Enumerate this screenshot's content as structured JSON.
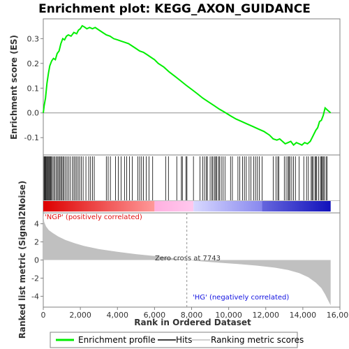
{
  "chart_data": {
    "type": "line",
    "title": "Enrichment plot: KEGG_AXON_GUIDANCE",
    "xlabel": "Rank in Ordered Dataset",
    "xlim": [
      0,
      16000
    ],
    "x_ticks": [
      0,
      2000,
      4000,
      6000,
      8000,
      10000,
      12000,
      14000,
      16000
    ],
    "x_tick_labels": [
      "0",
      "2,000",
      "4,000",
      "6,000",
      "8,000",
      "10,000",
      "12,000",
      "14,000",
      "16,000"
    ],
    "es_panel": {
      "ylabel": "Enrichment score (ES)",
      "ylim": [
        -0.17,
        0.38
      ],
      "y_ticks": [
        -0.1,
        0.0,
        0.1,
        0.2,
        0.3
      ],
      "y_tick_labels": [
        "-0.1",
        "0.0",
        "0.1",
        "0.2",
        "0.3"
      ],
      "series": [
        {
          "name": "Enrichment profile",
          "color": "#00ee00",
          "points": [
            [
              0,
              0.0
            ],
            [
              50,
              0.03
            ],
            [
              120,
              0.06
            ],
            [
              200,
              0.12
            ],
            [
              280,
              0.16
            ],
            [
              350,
              0.19
            ],
            [
              450,
              0.21
            ],
            [
              550,
              0.22
            ],
            [
              650,
              0.215
            ],
            [
              750,
              0.24
            ],
            [
              850,
              0.25
            ],
            [
              950,
              0.28
            ],
            [
              1050,
              0.3
            ],
            [
              1150,
              0.295
            ],
            [
              1250,
              0.31
            ],
            [
              1350,
              0.315
            ],
            [
              1500,
              0.31
            ],
            [
              1650,
              0.325
            ],
            [
              1800,
              0.32
            ],
            [
              1900,
              0.335
            ],
            [
              2000,
              0.34
            ],
            [
              2100,
              0.352
            ],
            [
              2200,
              0.348
            ],
            [
              2350,
              0.34
            ],
            [
              2500,
              0.345
            ],
            [
              2650,
              0.34
            ],
            [
              2800,
              0.345
            ],
            [
              3000,
              0.335
            ],
            [
              3200,
              0.325
            ],
            [
              3400,
              0.315
            ],
            [
              3600,
              0.31
            ],
            [
              3800,
              0.3
            ],
            [
              4000,
              0.295
            ],
            [
              4200,
              0.29
            ],
            [
              4400,
              0.285
            ],
            [
              4600,
              0.28
            ],
            [
              4800,
              0.27
            ],
            [
              5000,
              0.26
            ],
            [
              5200,
              0.25
            ],
            [
              5400,
              0.245
            ],
            [
              5600,
              0.235
            ],
            [
              5800,
              0.225
            ],
            [
              6000,
              0.215
            ],
            [
              6200,
              0.2
            ],
            [
              6500,
              0.185
            ],
            [
              6800,
              0.165
            ],
            [
              7100,
              0.148
            ],
            [
              7400,
              0.13
            ],
            [
              7700,
              0.112
            ],
            [
              8000,
              0.095
            ],
            [
              8300,
              0.078
            ],
            [
              8600,
              0.06
            ],
            [
              8900,
              0.045
            ],
            [
              9200,
              0.03
            ],
            [
              9500,
              0.015
            ],
            [
              9800,
              0.002
            ],
            [
              10100,
              -0.012
            ],
            [
              10400,
              -0.025
            ],
            [
              10700,
              -0.035
            ],
            [
              11000,
              -0.045
            ],
            [
              11300,
              -0.055
            ],
            [
              11600,
              -0.065
            ],
            [
              11900,
              -0.075
            ],
            [
              12200,
              -0.09
            ],
            [
              12400,
              -0.105
            ],
            [
              12600,
              -0.11
            ],
            [
              12750,
              -0.105
            ],
            [
              12900,
              -0.115
            ],
            [
              13050,
              -0.125
            ],
            [
              13200,
              -0.12
            ],
            [
              13350,
              -0.115
            ],
            [
              13500,
              -0.13
            ],
            [
              13650,
              -0.12
            ],
            [
              13800,
              -0.125
            ],
            [
              13950,
              -0.13
            ],
            [
              14100,
              -0.12
            ],
            [
              14250,
              -0.125
            ],
            [
              14400,
              -0.115
            ],
            [
              14500,
              -0.1
            ],
            [
              14600,
              -0.085
            ],
            [
              14700,
              -0.07
            ],
            [
              14800,
              -0.06
            ],
            [
              14900,
              -0.035
            ],
            [
              15000,
              -0.03
            ],
            [
              15100,
              -0.01
            ],
            [
              15200,
              0.02
            ],
            [
              15350,
              0.01
            ],
            [
              15500,
              0.0
            ]
          ]
        }
      ]
    },
    "hits_panel": {
      "hit_positions": [
        40,
        80,
        110,
        150,
        190,
        230,
        270,
        310,
        350,
        390,
        440,
        490,
        560,
        620,
        700,
        760,
        820,
        880,
        940,
        1000,
        1060,
        1120,
        1200,
        1280,
        1360,
        1450,
        1560,
        1650,
        1720,
        1800,
        1880,
        1960,
        2050,
        2150,
        2300,
        2450,
        2550,
        2650,
        2750,
        3400,
        3500,
        3620,
        3900,
        4050,
        4200,
        4380,
        4500,
        4650,
        4800,
        5100,
        5200,
        5300,
        5400,
        5550,
        5700,
        5900,
        6600,
        6750,
        7200,
        7450,
        7500,
        7700,
        7750,
        8100,
        8450,
        8600,
        8700,
        8800,
        8850,
        9000,
        9100,
        9150,
        9250,
        9300,
        9350,
        9450,
        9500,
        9600,
        9700,
        9800,
        10100,
        10200,
        10500,
        10600,
        10750,
        10850,
        10950,
        11100,
        11200,
        11350,
        11450,
        11550,
        11650,
        11800,
        12400,
        12550,
        12650,
        12700,
        13000,
        13100,
        13200,
        13250,
        13300,
        13400,
        13500,
        13600,
        13800,
        14050,
        14200,
        14300,
        14450,
        14500,
        14550,
        14650,
        14700,
        14750,
        14850,
        14950,
        15000,
        15050,
        15100,
        15150,
        15250,
        15300
      ],
      "color_bar": [
        {
          "from": 0,
          "to": 6000,
          "colors": [
            "#dd0000",
            "#ff9999"
          ]
        },
        {
          "from": 6000,
          "to": 8100,
          "colors": [
            "#ffb0e0",
            "#ffc8ee"
          ]
        },
        {
          "from": 8100,
          "to": 11800,
          "colors": [
            "#d8d8ff",
            "#8888ee"
          ]
        },
        {
          "from": 11800,
          "to": 15500,
          "colors": [
            "#6666dd",
            "#1111bb"
          ]
        }
      ]
    },
    "metric_panel": {
      "ylabel": "Ranked list metric (Signal2Noise)",
      "ylim": [
        -5.2,
        5.2
      ],
      "y_ticks": [
        -4,
        -2,
        0,
        2,
        4
      ],
      "y_tick_labels": [
        "-4",
        "-2",
        "0",
        "2",
        "4"
      ],
      "fill_color": "#c0c0c0",
      "profile": [
        [
          0,
          5.0
        ],
        [
          50,
          4.2
        ],
        [
          150,
          3.7
        ],
        [
          300,
          3.3
        ],
        [
          500,
          3.0
        ],
        [
          800,
          2.6
        ],
        [
          1200,
          2.2
        ],
        [
          1700,
          1.85
        ],
        [
          2200,
          1.55
        ],
        [
          3000,
          1.2
        ],
        [
          4000,
          0.9
        ],
        [
          5000,
          0.65
        ],
        [
          6000,
          0.45
        ],
        [
          7000,
          0.2
        ],
        [
          7743,
          0.0
        ],
        [
          8500,
          -0.15
        ],
        [
          9500,
          -0.3
        ],
        [
          10500,
          -0.45
        ],
        [
          11500,
          -0.62
        ],
        [
          12500,
          -0.85
        ],
        [
          13200,
          -1.1
        ],
        [
          13800,
          -1.45
        ],
        [
          14300,
          -1.9
        ],
        [
          14700,
          -2.5
        ],
        [
          15000,
          -3.1
        ],
        [
          15200,
          -3.8
        ],
        [
          15350,
          -4.4
        ],
        [
          15500,
          -5.0
        ]
      ],
      "annotations": {
        "positive": "'NGP' (positively correlated)",
        "negative": "'HG' (negatively correlated)",
        "zero_cross": "Zero cross at 7743"
      },
      "zero_cross_rank": 7743
    },
    "legend": {
      "placement": "bottom",
      "items": [
        {
          "label": "Enrichment profile",
          "color": "#00ee00",
          "kind": "line-green"
        },
        {
          "label": "Hits",
          "color": "#000000",
          "kind": "line-black"
        },
        {
          "label": "Ranking metric scores",
          "color": "#c0c0c0",
          "kind": "line-gray"
        }
      ]
    }
  }
}
